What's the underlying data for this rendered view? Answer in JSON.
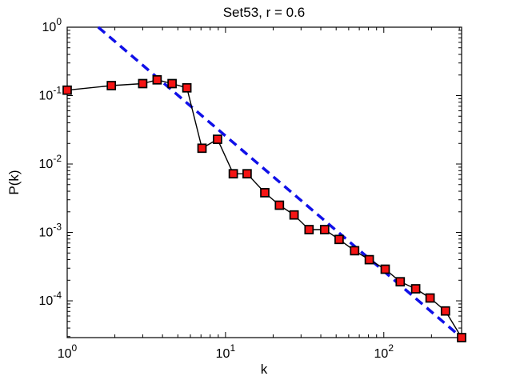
{
  "figure": {
    "title": "Set53, r = 0.6",
    "background_color": "#ffffff",
    "axis_color": "#000000"
  },
  "chart_data": {
    "type": "line",
    "title": "Set53, r = 0.6",
    "xlabel": "k",
    "ylabel": "P(k)",
    "x_scale": "log",
    "y_scale": "log",
    "xlim": [
      1,
      310
    ],
    "ylim": [
      2.9e-05,
      1
    ],
    "grid": false,
    "legend": "none",
    "x_tick_labels": [
      "10^0",
      "10^1",
      "10^2"
    ],
    "y_tick_labels": [
      "10^0",
      "10^-1",
      "10^-2",
      "10^-3",
      "10^-4"
    ],
    "x_tick_exponents": [
      0,
      1,
      2
    ],
    "y_tick_exponents": [
      0,
      -1,
      -2,
      -3,
      -4
    ],
    "series": [
      {
        "name": "degree-distribution",
        "style": "solid-line-with-square-markers",
        "line_color": "#000000",
        "marker": "square",
        "marker_fill": "#f51414",
        "marker_edge": "#000000",
        "points": [
          [
            1,
            0.12
          ],
          [
            1.9,
            0.14
          ],
          [
            3.0,
            0.15
          ],
          [
            3.7,
            0.17
          ],
          [
            4.6,
            0.15
          ],
          [
            5.7,
            0.13
          ],
          [
            7.1,
            0.017
          ],
          [
            8.9,
            0.023
          ],
          [
            11.2,
            0.0072
          ],
          [
            13.7,
            0.0072
          ],
          [
            17.7,
            0.0038
          ],
          [
            21.9,
            0.0025
          ],
          [
            27.1,
            0.0018
          ],
          [
            33.7,
            0.0011
          ],
          [
            42.3,
            0.0011
          ],
          [
            52.2,
            0.00079
          ],
          [
            65.4,
            0.00054
          ],
          [
            80.9,
            0.0004
          ],
          [
            102,
            0.00029
          ],
          [
            127,
            0.00019
          ],
          [
            159,
            0.00015
          ],
          [
            196,
            0.00011
          ],
          [
            245,
            7.1e-05
          ],
          [
            310,
            2.9e-05
          ]
        ]
      },
      {
        "name": "power-law-fit",
        "style": "dashed-line",
        "line_color": "#1010e8",
        "exponent": -2,
        "points": [
          [
            1.57,
            1.0
          ],
          [
            310,
            2.9e-05
          ]
        ]
      }
    ]
  }
}
